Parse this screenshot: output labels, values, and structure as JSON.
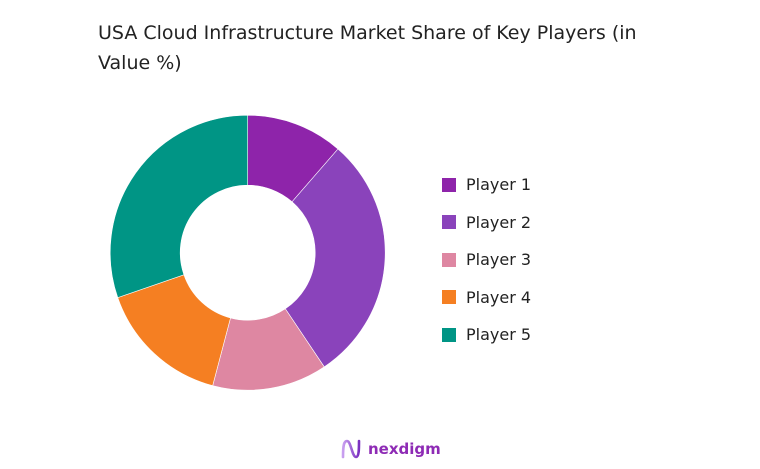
{
  "chart_data": {
    "type": "pie",
    "donut": true,
    "title": "USA Cloud Infrastructure Market Share of Key Players (in Value %)",
    "categories": [
      "Player 1",
      "Player 2",
      "Player 3",
      "Player 4",
      "Player 5"
    ],
    "values": [
      11.4,
      29.2,
      13.5,
      15.6,
      30.3
    ],
    "colors": [
      "#8e24aa",
      "#8a43bb",
      "#de87a2",
      "#f57f22",
      "#009585"
    ],
    "legend_placement": "right"
  },
  "brand": {
    "name": "nexdigm",
    "color": "#8e2bb5"
  }
}
